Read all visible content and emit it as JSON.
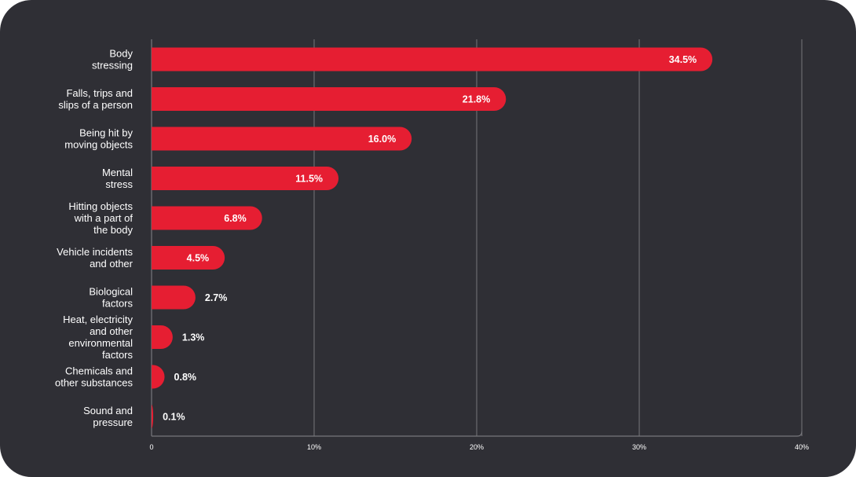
{
  "colors": {
    "background": "#2f2f35",
    "bar": "#e61e32",
    "text": "#ffffff",
    "grid": "#77777c"
  },
  "chart_data": {
    "type": "bar",
    "orientation": "horizontal",
    "categories": [
      [
        "Body",
        "stressing"
      ],
      [
        "Falls, trips and",
        "slips of a person"
      ],
      [
        "Being hit by",
        "moving objects"
      ],
      [
        "Mental",
        "stress"
      ],
      [
        "Hitting objects",
        "with a part of",
        "the body"
      ],
      [
        "Vehicle incidents",
        "and other"
      ],
      [
        "Biological",
        "factors"
      ],
      [
        "Heat, electricity",
        "and other",
        "environmental",
        "factors"
      ],
      [
        "Chemicals and",
        "other substances"
      ],
      [
        "Sound and",
        "pressure"
      ]
    ],
    "values": [
      34.5,
      21.8,
      16.0,
      11.5,
      6.8,
      4.5,
      2.7,
      1.3,
      0.8,
      0.1
    ],
    "value_labels": [
      "34.5%",
      "21.8%",
      "16.0%",
      "11.5%",
      "6.8%",
      "4.5%",
      "2.7%",
      "1.3%",
      "0.8%",
      "0.1%"
    ],
    "xlim": [
      0,
      40
    ],
    "x_ticks": [
      0,
      10,
      20,
      30,
      40
    ],
    "x_tick_labels": [
      "0",
      "10%",
      "20%",
      "30%",
      "40%"
    ],
    "grid": true,
    "title": "",
    "xlabel": "",
    "ylabel": ""
  }
}
